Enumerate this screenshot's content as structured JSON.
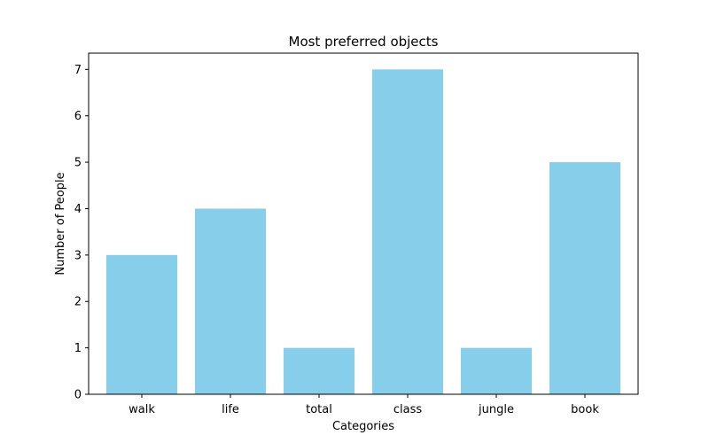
{
  "chart_data": {
    "type": "bar",
    "title": "Most preferred objects",
    "xlabel": "Categories",
    "ylabel": "Number of People",
    "categories": [
      "walk",
      "life",
      "total",
      "class",
      "jungle",
      "book"
    ],
    "values": [
      3,
      4,
      1,
      7,
      1,
      5
    ],
    "ylim": [
      0,
      7.35
    ],
    "yticks": [
      "0",
      "1",
      "2",
      "3",
      "4",
      "5",
      "6",
      "7"
    ],
    "bar_color": "#87ceeb",
    "grid": false,
    "legend": "none"
  }
}
